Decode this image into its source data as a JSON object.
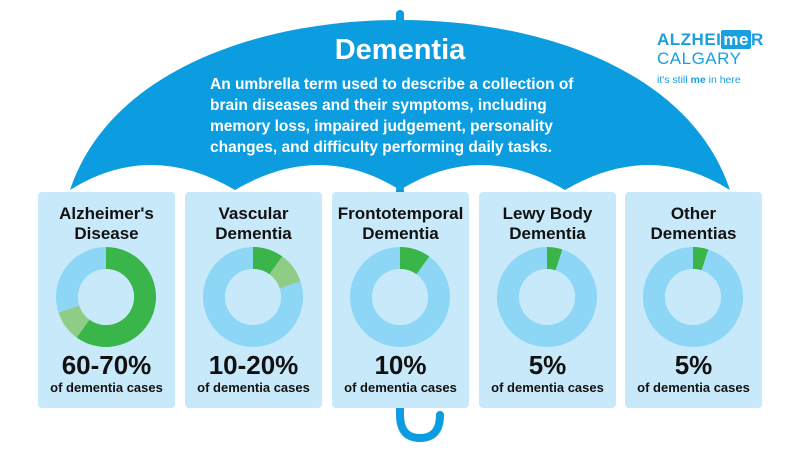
{
  "header": {
    "title": "Dementia",
    "description": [
      "An umbrella term used to describe a collection of",
      "brain diseases and their symptoms, including",
      "memory loss, impaired judgement, personality",
      "changes, and difficulty performing daily tasks."
    ]
  },
  "logo": {
    "line1a": "ALZHEI",
    "line1b": "me",
    "line1c": "R",
    "line2": "CALGARY",
    "tag_a": "it's still ",
    "tag_b": "me",
    "tag_c": " in here"
  },
  "colors": {
    "umbrella": "#0c9de0",
    "card": "#c8e9fa",
    "dark_green": "#3ab54a",
    "light_green": "#8fcc86",
    "light_blue": "#8dd6f6"
  },
  "chart_data": {
    "type": "pie",
    "style": "donut",
    "charts": [
      {
        "title": "Alzheimer's Disease",
        "label": "60-70%",
        "sublabel": "of dementia cases",
        "slices": [
          60,
          10,
          30
        ]
      },
      {
        "title": "Vascular Dementia",
        "label": "10-20%",
        "sublabel": "of dementia cases",
        "slices": [
          10,
          10,
          80
        ]
      },
      {
        "title": "Frontotemporal Dementia",
        "label": "10%",
        "sublabel": "of dementia cases",
        "slices": [
          10,
          0,
          90
        ]
      },
      {
        "title": "Lewy Body Dementia",
        "label": "5%",
        "sublabel": "of dementia cases",
        "slices": [
          5,
          0,
          95
        ]
      },
      {
        "title": "Other Dementias",
        "label": "5%",
        "sublabel": "of dementia cases",
        "slices": [
          5,
          0,
          95
        ]
      }
    ]
  },
  "cards": [
    {
      "name1": "Alzheimer's",
      "name2": "Disease"
    },
    {
      "name1": "Vascular",
      "name2": "Dementia"
    },
    {
      "name1": "Frontotemporal",
      "name2": "Dementia"
    },
    {
      "name1": "Lewy Body",
      "name2": "Dementia"
    },
    {
      "name1": "Other",
      "name2": "Dementias"
    }
  ]
}
